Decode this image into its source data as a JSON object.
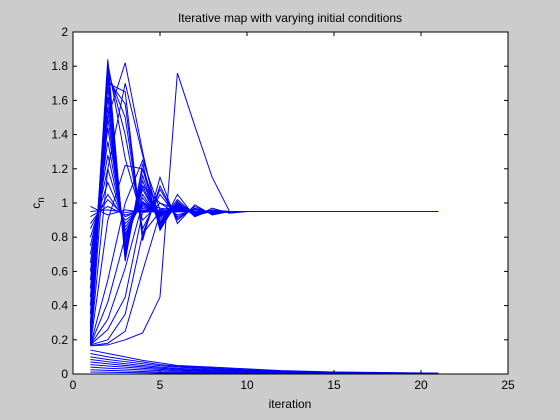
{
  "chart_data": {
    "type": "line",
    "title": "Iterative map with varying initial conditions",
    "xlabel": "iteration",
    "ylabel_main": "c",
    "ylabel_sub": "n",
    "xlim": [
      0,
      25
    ],
    "ylim": [
      0,
      2
    ],
    "xticks": [
      0,
      5,
      10,
      15,
      20,
      25
    ],
    "yticks": [
      0,
      0.2,
      0.4,
      0.6,
      0.8,
      1,
      1.2,
      1.4,
      1.6,
      1.8,
      2
    ],
    "ytick_labels": [
      "0",
      "0.2",
      "0.4",
      "0.6",
      "0.8",
      "1",
      "1.2",
      "1.4",
      "1.6",
      "1.8",
      "2"
    ],
    "grid": false,
    "legend": "none",
    "line_color": "#0000ff",
    "series": [
      {
        "x": [
          1,
          2,
          3,
          4,
          5,
          6,
          7,
          8,
          9,
          10,
          11,
          12
        ],
        "y": [
          0.95,
          0.96,
          0.945,
          0.952,
          0.948,
          0.95,
          0.949,
          0.95,
          0.95,
          0.95,
          0.95,
          0.95
        ]
      },
      {
        "x": [
          1,
          2,
          3,
          4,
          5,
          6,
          7,
          8
        ],
        "y": [
          0.92,
          0.98,
          0.93,
          0.955,
          0.945,
          0.952,
          0.948,
          0.95
        ]
      },
      {
        "x": [
          1,
          2,
          3,
          4,
          5,
          6,
          7,
          8
        ],
        "y": [
          0.98,
          0.93,
          0.96,
          0.945,
          0.953,
          0.948,
          0.951,
          0.95
        ]
      },
      {
        "x": [
          1,
          2,
          3,
          4,
          5,
          6,
          7
        ],
        "y": [
          0.88,
          1.02,
          0.92,
          0.96,
          0.945,
          0.952,
          0.95
        ]
      },
      {
        "x": [
          1,
          2,
          3,
          4,
          5,
          6,
          7
        ],
        "y": [
          0.85,
          1.05,
          0.9,
          0.97,
          0.94,
          0.955,
          0.95
        ]
      },
      {
        "x": [
          1,
          2,
          3,
          4,
          5,
          6,
          7
        ],
        "y": [
          0.8,
          1.12,
          0.88,
          0.98,
          0.935,
          0.956,
          0.95
        ]
      },
      {
        "x": [
          1,
          2,
          3,
          4,
          5,
          6,
          7
        ],
        "y": [
          0.75,
          1.2,
          0.86,
          0.99,
          0.93,
          0.96,
          0.95
        ]
      },
      {
        "x": [
          1,
          2,
          3,
          4,
          5,
          6,
          7,
          8
        ],
        "y": [
          0.7,
          1.28,
          0.84,
          1.0,
          0.925,
          0.96,
          0.945,
          0.95
        ]
      },
      {
        "x": [
          1,
          2,
          3,
          4,
          5,
          6,
          7,
          8
        ],
        "y": [
          0.65,
          1.36,
          0.82,
          1.01,
          0.92,
          0.965,
          0.944,
          0.95
        ]
      },
      {
        "x": [
          1,
          2,
          3,
          4,
          5,
          6,
          7,
          8
        ],
        "y": [
          0.6,
          1.44,
          0.8,
          1.03,
          0.91,
          0.97,
          0.94,
          0.95
        ]
      },
      {
        "x": [
          1,
          2,
          3,
          4,
          5,
          6,
          7,
          8
        ],
        "y": [
          0.55,
          1.5,
          0.78,
          1.05,
          0.9,
          0.975,
          0.938,
          0.95
        ]
      },
      {
        "x": [
          1,
          2,
          3,
          4,
          5,
          6,
          7,
          8
        ],
        "y": [
          0.5,
          1.56,
          0.76,
          1.08,
          0.89,
          0.98,
          0.935,
          0.95
        ]
      },
      {
        "x": [
          1,
          2,
          3,
          4,
          5,
          6,
          7,
          8
        ],
        "y": [
          0.45,
          1.62,
          0.74,
          1.1,
          0.88,
          0.985,
          0.932,
          0.95
        ]
      },
      {
        "x": [
          1,
          2,
          3,
          4,
          5,
          6,
          7,
          8
        ],
        "y": [
          0.4,
          1.68,
          0.72,
          1.13,
          0.87,
          0.99,
          0.93,
          0.95
        ]
      },
      {
        "x": [
          1,
          2,
          3,
          4,
          5,
          6,
          7,
          8
        ],
        "y": [
          0.35,
          1.74,
          0.7,
          1.16,
          0.86,
          0.995,
          0.928,
          0.95
        ]
      },
      {
        "x": [
          1,
          2,
          3,
          4,
          5,
          6,
          7,
          8,
          9
        ],
        "y": [
          0.3,
          1.8,
          0.68,
          1.2,
          0.85,
          1.0,
          0.925,
          0.955,
          0.95
        ]
      },
      {
        "x": [
          1,
          2,
          3,
          4,
          5,
          6,
          7,
          8,
          9
        ],
        "y": [
          0.28,
          1.84,
          0.66,
          1.23,
          0.84,
          1.01,
          0.92,
          0.96,
          0.95
        ]
      },
      {
        "x": [
          1,
          2,
          3,
          4,
          5,
          6,
          7,
          8,
          9
        ],
        "y": [
          0.26,
          1.82,
          1.26,
          0.9,
          1.0,
          0.93,
          0.96,
          0.945,
          0.95
        ]
      },
      {
        "x": [
          1,
          2,
          3,
          4,
          5,
          6,
          7,
          8,
          9
        ],
        "y": [
          0.24,
          1.79,
          1.4,
          0.85,
          1.05,
          0.92,
          0.965,
          0.942,
          0.95
        ]
      },
      {
        "x": [
          1,
          2,
          3,
          4,
          5,
          6,
          7,
          8,
          9
        ],
        "y": [
          0.22,
          1.76,
          1.5,
          0.82,
          1.08,
          0.91,
          0.97,
          0.94,
          0.95
        ]
      },
      {
        "x": [
          1,
          2,
          3,
          4,
          5,
          6,
          7,
          8,
          9
        ],
        "y": [
          0.2,
          1.72,
          1.58,
          0.8,
          1.1,
          0.9,
          0.98,
          0.935,
          0.95
        ]
      },
      {
        "x": [
          1,
          2,
          3,
          4,
          5,
          6,
          7,
          8,
          9
        ],
        "y": [
          0.19,
          1.7,
          1.65,
          0.78,
          1.15,
          0.88,
          0.99,
          0.93,
          0.95
        ]
      },
      {
        "x": [
          1,
          2,
          3,
          4,
          5,
          6,
          7,
          8,
          9,
          10
        ],
        "y": [
          0.18,
          1.5,
          1.82,
          1.3,
          0.85,
          1.05,
          0.92,
          0.97,
          0.94,
          0.95
        ]
      },
      {
        "x": [
          1,
          2,
          3,
          4,
          5,
          6,
          7,
          8,
          9,
          10
        ],
        "y": [
          0.18,
          1.2,
          1.7,
          1.28,
          0.88,
          1.02,
          0.93,
          0.96,
          0.945,
          0.95
        ]
      },
      {
        "x": [
          1,
          2,
          3,
          4,
          5,
          6,
          7,
          8,
          9,
          10
        ],
        "y": [
          0.17,
          0.9,
          1.22,
          1.2,
          0.92,
          1.0,
          0.94,
          0.955,
          0.948,
          0.95
        ]
      },
      {
        "x": [
          1,
          2,
          3,
          4,
          5,
          6,
          7,
          8,
          9,
          10
        ],
        "y": [
          0.17,
          0.55,
          1.0,
          1.25,
          0.96,
          0.98,
          0.945,
          0.952,
          0.95,
          0.95
        ]
      },
      {
        "x": [
          1,
          2,
          3,
          4,
          5,
          6,
          7,
          8,
          9,
          10
        ],
        "y": [
          0.17,
          0.42,
          0.8,
          1.1,
          1.0,
          0.96,
          0.95,
          0.95,
          0.95,
          0.95
        ]
      },
      {
        "x": [
          1,
          2,
          3,
          4,
          5,
          6,
          7,
          8,
          9,
          10
        ],
        "y": [
          0.17,
          0.32,
          0.62,
          1.0,
          0.97,
          0.955,
          0.95,
          0.95,
          0.95,
          0.95
        ]
      },
      {
        "x": [
          1,
          2,
          3,
          4,
          5,
          6,
          7,
          8,
          9,
          10,
          21
        ],
        "y": [
          0.17,
          0.26,
          0.45,
          0.95,
          0.96,
          0.95,
          0.95,
          0.95,
          0.95,
          0.95,
          0.95
        ]
      },
      {
        "x": [
          1,
          2,
          3,
          4,
          5,
          6,
          7,
          8,
          9,
          10,
          21
        ],
        "y": [
          0.17,
          0.2,
          0.35,
          0.82,
          0.95,
          0.95,
          0.95,
          0.95,
          0.95,
          0.95,
          0.95
        ]
      },
      {
        "x": [
          1,
          2,
          3,
          4,
          5,
          6,
          7,
          8,
          9,
          10,
          21
        ],
        "y": [
          0.165,
          0.18,
          0.25,
          0.6,
          0.94,
          0.95,
          0.95,
          0.95,
          0.95,
          0.95,
          0.95
        ]
      },
      {
        "x": [
          1,
          2,
          3,
          4,
          5,
          6,
          7,
          8,
          9,
          10,
          21
        ],
        "y": [
          0.165,
          0.17,
          0.2,
          0.24,
          0.45,
          1.76,
          1.45,
          1.15,
          0.95,
          0.95,
          0.95
        ]
      },
      {
        "x": [
          1,
          2,
          3,
          4,
          5,
          6,
          8,
          10,
          12,
          15,
          21
        ],
        "y": [
          0.14,
          0.12,
          0.1,
          0.08,
          0.065,
          0.05,
          0.04,
          0.03,
          0.02,
          0.012,
          0.005
        ]
      },
      {
        "x": [
          1,
          2,
          3,
          4,
          5,
          6,
          8,
          10,
          12,
          15,
          21
        ],
        "y": [
          0.12,
          0.1,
          0.085,
          0.07,
          0.055,
          0.045,
          0.035,
          0.025,
          0.017,
          0.01,
          0.004
        ]
      },
      {
        "x": [
          1,
          2,
          3,
          4,
          5,
          6,
          8,
          10,
          12,
          15,
          21
        ],
        "y": [
          0.1,
          0.085,
          0.072,
          0.06,
          0.048,
          0.04,
          0.03,
          0.021,
          0.014,
          0.008,
          0.003
        ]
      },
      {
        "x": [
          1,
          2,
          3,
          4,
          5,
          6,
          8,
          10,
          12,
          15,
          21
        ],
        "y": [
          0.085,
          0.072,
          0.06,
          0.05,
          0.04,
          0.033,
          0.025,
          0.018,
          0.012,
          0.007,
          0.003
        ]
      },
      {
        "x": [
          1,
          2,
          3,
          4,
          5,
          6,
          8,
          10,
          12,
          15,
          21
        ],
        "y": [
          0.07,
          0.06,
          0.05,
          0.042,
          0.034,
          0.028,
          0.02,
          0.015,
          0.01,
          0.006,
          0.002
        ]
      },
      {
        "x": [
          1,
          2,
          3,
          4,
          5,
          6,
          8,
          10,
          12,
          15,
          21
        ],
        "y": [
          0.055,
          0.047,
          0.04,
          0.033,
          0.027,
          0.022,
          0.016,
          0.012,
          0.008,
          0.005,
          0.002
        ]
      },
      {
        "x": [
          1,
          2,
          3,
          4,
          5,
          6,
          8,
          10,
          12,
          15,
          21
        ],
        "y": [
          0.04,
          0.034,
          0.029,
          0.024,
          0.02,
          0.016,
          0.012,
          0.009,
          0.006,
          0.004,
          0.001
        ]
      },
      {
        "x": [
          1,
          2,
          3,
          4,
          5,
          6,
          8,
          10,
          12,
          15,
          21
        ],
        "y": [
          0.025,
          0.021,
          0.018,
          0.015,
          0.012,
          0.01,
          0.008,
          0.006,
          0.004,
          0.002,
          0.001
        ]
      },
      {
        "x": [
          1,
          2,
          3,
          4,
          5,
          6,
          8,
          10,
          12,
          15,
          21
        ],
        "y": [
          0.012,
          0.01,
          0.009,
          0.007,
          0.006,
          0.005,
          0.004,
          0.003,
          0.002,
          0.001,
          0.0
        ]
      }
    ]
  }
}
